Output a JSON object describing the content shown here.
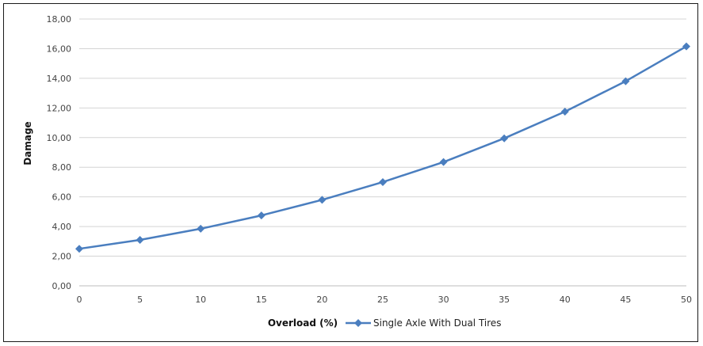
{
  "chart_data": {
    "type": "line",
    "x": [
      0,
      5,
      10,
      15,
      20,
      25,
      30,
      35,
      40,
      45,
      50
    ],
    "series": [
      {
        "name": "Single Axle With Dual Tires",
        "values": [
          2.5,
          3.1,
          3.85,
          4.75,
          5.8,
          7.0,
          8.35,
          9.95,
          11.75,
          13.8,
          16.15
        ],
        "color": "#4a7ebf",
        "marker": "diamond"
      }
    ],
    "xlabel": "Overload (%)",
    "ylabel": "Damage",
    "xticks": [
      "0",
      "5",
      "10",
      "15",
      "20",
      "25",
      "30",
      "35",
      "40",
      "45",
      "50"
    ],
    "yticks": [
      "0,00",
      "2,00",
      "4,00",
      "6,00",
      "8,00",
      "10,00",
      "12,00",
      "14,00",
      "16,00",
      "18,00"
    ],
    "xlim": [
      0,
      50
    ],
    "ylim": [
      0,
      18
    ],
    "grid": "horizontal",
    "legend_position": "bottom"
  }
}
